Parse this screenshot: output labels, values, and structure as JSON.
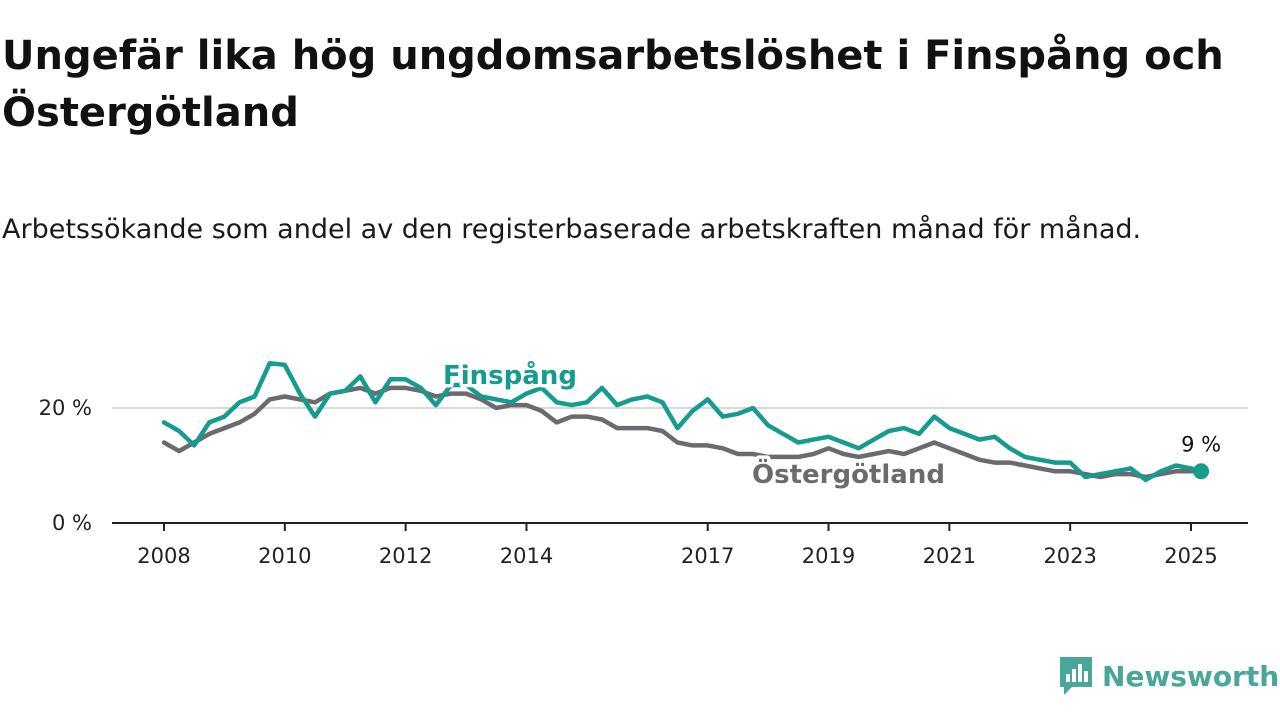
{
  "header": {
    "title": "Ungefär lika hög ungdomsarbetslöshet i Finspång och Östergötland",
    "subtitle": "Arbetssökande som andel av den registerbaserade arbetskraften månad för månad."
  },
  "brand": {
    "name": "Newsworthy",
    "icon": "newsworthy-logo-icon",
    "color": "#4aa59a"
  },
  "colors": {
    "finspang": "#159c8f",
    "ostergotland": "#6b6a6f",
    "gridline": "#d9d9d9",
    "axis": "#222222"
  },
  "chart_data": {
    "type": "line",
    "title": "Ungefär lika hög ungdomsarbetslöshet i Finspång och Östergötland",
    "subtitle": "Arbetssökande som andel av den registerbaserade arbetskraften månad för månad.",
    "xlabel": "",
    "ylabel": "",
    "x_ticks": [
      2008,
      2010,
      2012,
      2014,
      2017,
      2019,
      2021,
      2023,
      2025
    ],
    "y_ticks": [
      {
        "value": 0,
        "label": "0 %"
      },
      {
        "value": 20,
        "label": "20 %"
      }
    ],
    "xlim": [
      "2008-01",
      "2025-03"
    ],
    "ylim": [
      0,
      30
    ],
    "grid": "horizontal",
    "legend": "inline-labels",
    "end_label": "9 %",
    "series": [
      {
        "name": "Finspång",
        "color": "#159c8f",
        "points": [
          [
            "2008-01",
            17.5
          ],
          [
            "2008-04",
            16.0
          ],
          [
            "2008-07",
            13.5
          ],
          [
            "2008-10",
            17.5
          ],
          [
            "2009-01",
            18.5
          ],
          [
            "2009-04",
            21.0
          ],
          [
            "2009-07",
            22.0
          ],
          [
            "2009-10",
            27.8
          ],
          [
            "2010-01",
            27.5
          ],
          [
            "2010-04",
            22.5
          ],
          [
            "2010-07",
            18.5
          ],
          [
            "2010-10",
            22.5
          ],
          [
            "2011-01",
            23.0
          ],
          [
            "2011-04",
            25.5
          ],
          [
            "2011-07",
            21.0
          ],
          [
            "2011-10",
            25.0
          ],
          [
            "2012-01",
            25.0
          ],
          [
            "2012-04",
            23.5
          ],
          [
            "2012-07",
            20.5
          ],
          [
            "2012-10",
            24.0
          ],
          [
            "2013-01",
            24.0
          ],
          [
            "2013-04",
            22.0
          ],
          [
            "2013-07",
            21.5
          ],
          [
            "2013-10",
            21.0
          ],
          [
            "2014-01",
            22.5
          ],
          [
            "2014-04",
            23.5
          ],
          [
            "2014-07",
            21.0
          ],
          [
            "2014-10",
            20.5
          ],
          [
            "2015-01",
            21.0
          ],
          [
            "2015-04",
            23.5
          ],
          [
            "2015-07",
            20.5
          ],
          [
            "2015-10",
            21.5
          ],
          [
            "2016-01",
            22.0
          ],
          [
            "2016-04",
            21.0
          ],
          [
            "2016-07",
            16.5
          ],
          [
            "2016-10",
            19.5
          ],
          [
            "2017-01",
            21.5
          ],
          [
            "2017-04",
            18.5
          ],
          [
            "2017-07",
            19.0
          ],
          [
            "2017-10",
            20.0
          ],
          [
            "2018-01",
            17.0
          ],
          [
            "2018-04",
            15.5
          ],
          [
            "2018-07",
            14.0
          ],
          [
            "2018-10",
            14.5
          ],
          [
            "2019-01",
            15.0
          ],
          [
            "2019-04",
            14.0
          ],
          [
            "2019-07",
            13.0
          ],
          [
            "2019-10",
            14.5
          ],
          [
            "2020-01",
            16.0
          ],
          [
            "2020-04",
            16.5
          ],
          [
            "2020-07",
            15.5
          ],
          [
            "2020-10",
            18.5
          ],
          [
            "2021-01",
            16.5
          ],
          [
            "2021-04",
            15.5
          ],
          [
            "2021-07",
            14.5
          ],
          [
            "2021-10",
            15.0
          ],
          [
            "2022-01",
            13.0
          ],
          [
            "2022-04",
            11.5
          ],
          [
            "2022-07",
            11.0
          ],
          [
            "2022-10",
            10.5
          ],
          [
            "2023-01",
            10.5
          ],
          [
            "2023-04",
            8.0
          ],
          [
            "2023-07",
            8.5
          ],
          [
            "2023-10",
            9.0
          ],
          [
            "2024-01",
            9.5
          ],
          [
            "2024-04",
            7.5
          ],
          [
            "2024-07",
            9.0
          ],
          [
            "2024-10",
            10.0
          ],
          [
            "2025-01",
            9.5
          ],
          [
            "2025-03",
            9.0
          ]
        ]
      },
      {
        "name": "Östergötland",
        "color": "#6b6a6f",
        "points": [
          [
            "2008-01",
            14.0
          ],
          [
            "2008-04",
            12.5
          ],
          [
            "2008-07",
            14.0
          ],
          [
            "2008-10",
            15.5
          ],
          [
            "2009-01",
            16.5
          ],
          [
            "2009-04",
            17.5
          ],
          [
            "2009-07",
            19.0
          ],
          [
            "2009-10",
            21.5
          ],
          [
            "2010-01",
            22.0
          ],
          [
            "2010-04",
            21.5
          ],
          [
            "2010-07",
            21.0
          ],
          [
            "2010-10",
            22.5
          ],
          [
            "2011-01",
            23.0
          ],
          [
            "2011-04",
            23.5
          ],
          [
            "2011-07",
            22.5
          ],
          [
            "2011-10",
            23.5
          ],
          [
            "2012-01",
            23.5
          ],
          [
            "2012-04",
            23.0
          ],
          [
            "2012-07",
            22.0
          ],
          [
            "2012-10",
            22.5
          ],
          [
            "2013-01",
            22.5
          ],
          [
            "2013-04",
            21.5
          ],
          [
            "2013-07",
            20.0
          ],
          [
            "2013-10",
            20.5
          ],
          [
            "2014-01",
            20.5
          ],
          [
            "2014-04",
            19.5
          ],
          [
            "2014-07",
            17.5
          ],
          [
            "2014-10",
            18.5
          ],
          [
            "2015-01",
            18.5
          ],
          [
            "2015-04",
            18.0
          ],
          [
            "2015-07",
            16.5
          ],
          [
            "2015-10",
            16.5
          ],
          [
            "2016-01",
            16.5
          ],
          [
            "2016-04",
            16.0
          ],
          [
            "2016-07",
            14.0
          ],
          [
            "2016-10",
            13.5
          ],
          [
            "2017-01",
            13.5
          ],
          [
            "2017-04",
            13.0
          ],
          [
            "2017-07",
            12.0
          ],
          [
            "2017-10",
            12.0
          ],
          [
            "2018-01",
            11.5
          ],
          [
            "2018-04",
            11.5
          ],
          [
            "2018-07",
            11.5
          ],
          [
            "2018-10",
            12.0
          ],
          [
            "2019-01",
            13.0
          ],
          [
            "2019-04",
            12.0
          ],
          [
            "2019-07",
            11.5
          ],
          [
            "2019-10",
            12.0
          ],
          [
            "2020-01",
            12.5
          ],
          [
            "2020-04",
            12.0
          ],
          [
            "2020-07",
            13.0
          ],
          [
            "2020-10",
            14.0
          ],
          [
            "2021-01",
            13.0
          ],
          [
            "2021-04",
            12.0
          ],
          [
            "2021-07",
            11.0
          ],
          [
            "2021-10",
            10.5
          ],
          [
            "2022-01",
            10.5
          ],
          [
            "2022-04",
            10.0
          ],
          [
            "2022-07",
            9.5
          ],
          [
            "2022-10",
            9.0
          ],
          [
            "2023-01",
            9.0
          ],
          [
            "2023-04",
            8.5
          ],
          [
            "2023-07",
            8.0
          ],
          [
            "2023-10",
            8.5
          ],
          [
            "2024-01",
            8.5
          ],
          [
            "2024-04",
            8.0
          ],
          [
            "2024-07",
            8.5
          ],
          [
            "2024-10",
            9.0
          ],
          [
            "2025-01",
            9.0
          ],
          [
            "2025-03",
            9.0
          ]
        ]
      }
    ]
  }
}
